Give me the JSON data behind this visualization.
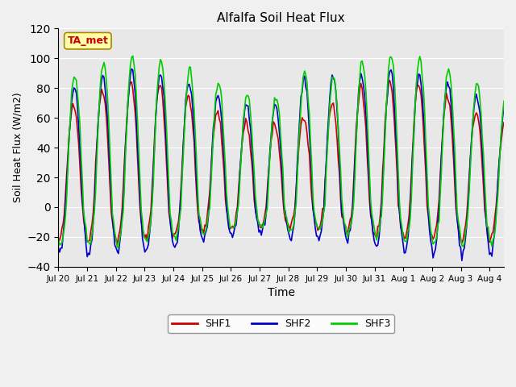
{
  "title": "Alfalfa Soil Heat Flux",
  "xlabel": "Time",
  "ylabel": "Soil Heat Flux (W/m2)",
  "ylim": [
    -40,
    120
  ],
  "yticks": [
    -40,
    -20,
    0,
    20,
    40,
    60,
    80,
    100,
    120
  ],
  "background_color": "#e8e8e8",
  "plot_bg_color": "#e8e8e8",
  "shf1_color": "#cc0000",
  "shf2_color": "#0000cc",
  "shf3_color": "#00cc00",
  "legend_label1": "SHF1",
  "legend_label2": "SHF2",
  "legend_label3": "SHF3",
  "ta_met_box_color": "#ffffaa",
  "ta_met_text_color": "#cc0000",
  "ta_met_border_color": "#aa8800",
  "x_tick_labels": [
    "Jul 20",
    "Jul 21",
    "Jul 22",
    "Jul 23",
    "Jul 24",
    "Jul 25",
    "Jul 26",
    "Jul 27",
    "Jul 28",
    "Jul 29",
    "Jul 30",
    "Jul 31",
    "Aug 1",
    "Aug 2",
    "Aug 3",
    "Aug 4"
  ],
  "n_days": 15.5,
  "n_points": 372
}
